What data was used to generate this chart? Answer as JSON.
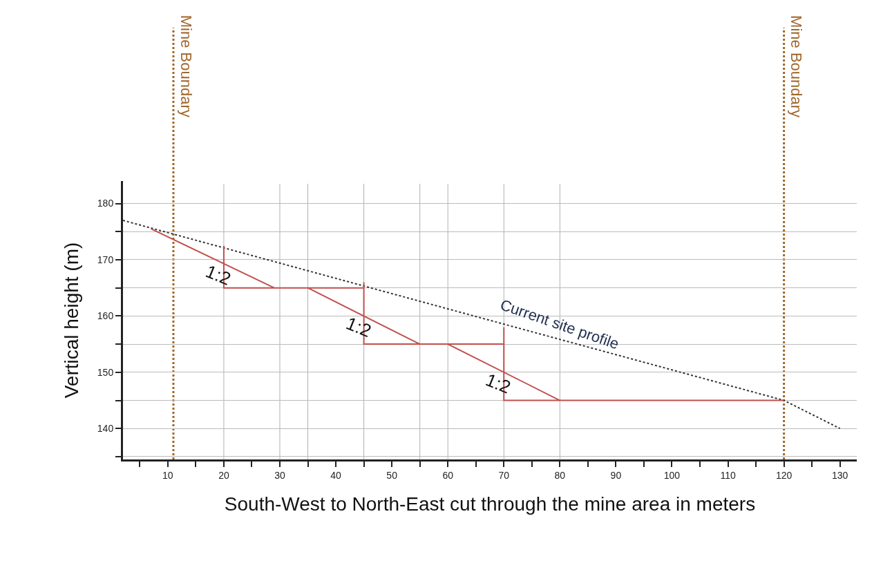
{
  "chart_data": {
    "type": "line",
    "xlabel": "South-West to North-East cut through the mine area in meters",
    "ylabel": "Vertical height (m)",
    "xlim": [
      2,
      133
    ],
    "ylim": [
      134.5,
      184
    ],
    "xticks": [
      {
        "value": 5,
        "label": null
      },
      10,
      {
        "value": 15,
        "label": null
      },
      20,
      {
        "value": 25,
        "label": null
      },
      30,
      {
        "value": 35,
        "label": null
      },
      40,
      {
        "value": 45,
        "label": null
      },
      50,
      {
        "value": 55,
        "label": null
      },
      60,
      {
        "value": 65,
        "label": null
      },
      70,
      {
        "value": 75,
        "label": null
      },
      80,
      {
        "value": 85,
        "label": null
      },
      90,
      {
        "value": 95,
        "label": null
      },
      100,
      {
        "value": 105,
        "label": null
      },
      110,
      {
        "value": 115,
        "label": null
      },
      120,
      {
        "value": 125,
        "label": null
      },
      130
    ],
    "yticks": [
      {
        "value": 135,
        "label": null
      },
      140,
      {
        "value": 145,
        "label": null
      },
      150,
      {
        "value": 155,
        "label": null
      },
      160,
      {
        "value": 165,
        "label": null
      },
      170,
      {
        "value": 175,
        "label": null
      },
      180
    ],
    "grid": "y",
    "marker": "none",
    "series": [
      {
        "x": [
          2,
          120,
          130
        ],
        "values": [
          177,
          145,
          140
        ],
        "color": "#333333",
        "line_style": "dotted"
      },
      {
        "x": [
          7,
          29,
          null,
          35,
          55,
          null,
          60,
          80,
          null,
          20,
          20,
          45,
          null,
          45,
          45,
          70,
          null,
          70,
          70,
          120
        ],
        "values": [
          175.5,
          165,
          null,
          165,
          155,
          null,
          155,
          145,
          null,
          172.5,
          165,
          165,
          null,
          166,
          155,
          155,
          null,
          158,
          145,
          145
        ],
        "color": "#c0504d",
        "line_style": "solid"
      }
    ],
    "ref_lines": [
      {
        "axis": "x",
        "value": 11,
        "label": "Mine Boundary",
        "color": "#a0662a",
        "line_style": "dotted"
      },
      {
        "axis": "x",
        "value": 120,
        "label": "Mine Boundary",
        "color": "#a0662a",
        "line_style": "dotted"
      },
      {
        "axis": "x",
        "value": 20,
        "color": "#b0b0b0"
      },
      {
        "axis": "x",
        "value": 30,
        "color": "#b0b0b0"
      },
      {
        "axis": "x",
        "value": 35,
        "color": "#b0b0b0"
      },
      {
        "axis": "x",
        "value": 45,
        "color": "#b0b0b0"
      },
      {
        "axis": "x",
        "value": 55,
        "color": "#b0b0b0"
      },
      {
        "axis": "x",
        "value": 60,
        "color": "#b0b0b0"
      },
      {
        "axis": "x",
        "value": 70,
        "color": "#b0b0b0"
      },
      {
        "axis": "x",
        "value": 80,
        "color": "#b0b0b0"
      }
    ],
    "annotations": [
      {
        "text": "1:2",
        "x": 20,
        "y": 169.3
      },
      {
        "text": "1:2",
        "x": 45,
        "y": 160
      },
      {
        "text": "1:2",
        "x": 70,
        "y": 150
      },
      {
        "text": "Current site profile",
        "x": 80,
        "y": 155.8
      }
    ]
  }
}
